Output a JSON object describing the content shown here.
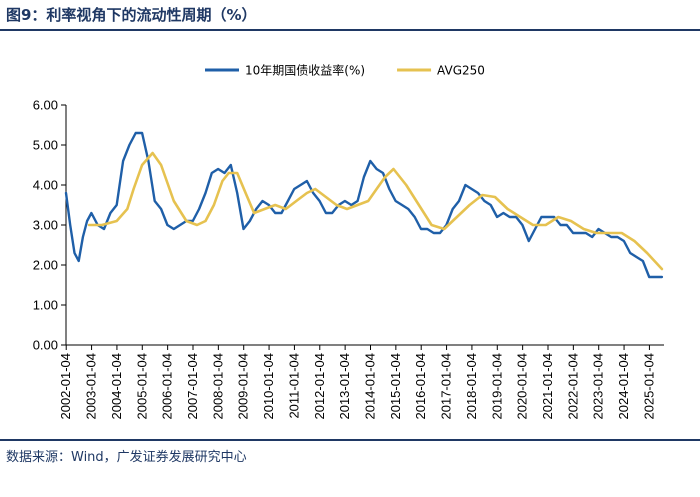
{
  "figure": {
    "title": "图9：利率视角下的流动性周期（%）",
    "source": "数据来源：Wind，广发证券发展研究中心"
  },
  "colors": {
    "series_1": "#1f5fa8",
    "series_2": "#e6c250",
    "axis": "#000000",
    "rule": "#1f3864"
  },
  "chart_data": {
    "type": "line",
    "title": "",
    "xlabel": "",
    "ylabel": "",
    "ylim": [
      0,
      6
    ],
    "y_ticks": [
      "0.00",
      "1.00",
      "2.00",
      "3.00",
      "4.00",
      "5.00",
      "6.00"
    ],
    "x_ticks": [
      "2002-01-04",
      "2003-01-04",
      "2004-01-04",
      "2005-01-04",
      "2006-01-04",
      "2007-01-04",
      "2008-01-04",
      "2009-01-04",
      "2010-01-04",
      "2011-01-04",
      "2012-01-04",
      "2013-01-04",
      "2014-01-04",
      "2015-01-04",
      "2016-01-04",
      "2017-01-04",
      "2018-01-04",
      "2019-01-04",
      "2020-01-04",
      "2021-01-04",
      "2022-01-04",
      "2023-01-04",
      "2024-01-04",
      "2025-01-04"
    ],
    "grid": false,
    "legend_position": "top",
    "series": [
      {
        "name": "10年期国债收益率(%)",
        "color": "#1f5fa8",
        "x": [
          "2002-01",
          "2002-03",
          "2002-05",
          "2002-07",
          "2002-09",
          "2002-11",
          "2003-01",
          "2003-04",
          "2003-07",
          "2003-10",
          "2004-01",
          "2004-04",
          "2004-07",
          "2004-10",
          "2005-01",
          "2005-04",
          "2005-07",
          "2005-10",
          "2006-01",
          "2006-04",
          "2006-07",
          "2006-10",
          "2007-01",
          "2007-04",
          "2007-07",
          "2007-10",
          "2008-01",
          "2008-04",
          "2008-07",
          "2008-10",
          "2009-01",
          "2009-04",
          "2009-07",
          "2009-10",
          "2010-01",
          "2010-04",
          "2010-07",
          "2010-10",
          "2011-01",
          "2011-04",
          "2011-07",
          "2011-10",
          "2012-01",
          "2012-04",
          "2012-07",
          "2012-10",
          "2013-01",
          "2013-04",
          "2013-07",
          "2013-10",
          "2014-01",
          "2014-04",
          "2014-07",
          "2014-10",
          "2015-01",
          "2015-04",
          "2015-07",
          "2015-10",
          "2016-01",
          "2016-04",
          "2016-07",
          "2016-10",
          "2017-01",
          "2017-04",
          "2017-07",
          "2017-10",
          "2018-01",
          "2018-04",
          "2018-07",
          "2018-10",
          "2019-01",
          "2019-04",
          "2019-07",
          "2019-10",
          "2020-01",
          "2020-04",
          "2020-07",
          "2020-10",
          "2021-01",
          "2021-04",
          "2021-07",
          "2021-10",
          "2022-01",
          "2022-04",
          "2022-07",
          "2022-10",
          "2023-01",
          "2023-04",
          "2023-07",
          "2023-10",
          "2024-01",
          "2024-04",
          "2024-07",
          "2024-10",
          "2025-01",
          "2025-04",
          "2025-07"
        ],
        "values": [
          3.8,
          3.0,
          2.3,
          2.1,
          2.7,
          3.1,
          3.3,
          3.0,
          2.9,
          3.3,
          3.5,
          4.6,
          5.0,
          5.3,
          5.3,
          4.6,
          3.6,
          3.4,
          3.0,
          2.9,
          3.0,
          3.1,
          3.1,
          3.4,
          3.8,
          4.3,
          4.4,
          4.3,
          4.5,
          3.8,
          2.9,
          3.1,
          3.4,
          3.6,
          3.5,
          3.3,
          3.3,
          3.6,
          3.9,
          4.0,
          4.1,
          3.8,
          3.6,
          3.3,
          3.3,
          3.5,
          3.6,
          3.5,
          3.6,
          4.2,
          4.6,
          4.4,
          4.3,
          3.9,
          3.6,
          3.5,
          3.4,
          3.2,
          2.9,
          2.9,
          2.8,
          2.8,
          3.0,
          3.4,
          3.6,
          4.0,
          3.9,
          3.8,
          3.6,
          3.5,
          3.2,
          3.3,
          3.2,
          3.2,
          3.0,
          2.6,
          2.9,
          3.2,
          3.2,
          3.2,
          3.0,
          3.0,
          2.8,
          2.8,
          2.8,
          2.7,
          2.9,
          2.8,
          2.7,
          2.7,
          2.6,
          2.3,
          2.2,
          2.1,
          1.7,
          1.7,
          1.7
        ]
      },
      {
        "name": "AVG250",
        "color": "#e6c250",
        "x": [
          "2002-12",
          "2003-06",
          "2004-01",
          "2004-06",
          "2004-09",
          "2005-01",
          "2005-06",
          "2005-10",
          "2006-04",
          "2006-10",
          "2007-03",
          "2007-07",
          "2007-11",
          "2008-03",
          "2008-06",
          "2008-10",
          "2009-02",
          "2009-06",
          "2009-11",
          "2010-04",
          "2010-09",
          "2011-02",
          "2011-07",
          "2011-11",
          "2012-04",
          "2012-09",
          "2013-02",
          "2013-07",
          "2013-12",
          "2014-04",
          "2014-08",
          "2014-12",
          "2015-06",
          "2015-12",
          "2016-06",
          "2016-12",
          "2017-06",
          "2017-12",
          "2018-06",
          "2018-12",
          "2019-06",
          "2019-12",
          "2020-06",
          "2020-12",
          "2021-06",
          "2021-12",
          "2022-06",
          "2022-12",
          "2023-06",
          "2023-12",
          "2024-06",
          "2024-12",
          "2025-07"
        ],
        "values": [
          3.0,
          3.0,
          3.1,
          3.4,
          3.9,
          4.5,
          4.8,
          4.5,
          3.6,
          3.1,
          3.0,
          3.1,
          3.5,
          4.1,
          4.3,
          4.3,
          3.8,
          3.3,
          3.4,
          3.5,
          3.4,
          3.6,
          3.8,
          3.9,
          3.7,
          3.5,
          3.4,
          3.5,
          3.6,
          3.9,
          4.2,
          4.4,
          4.0,
          3.5,
          3.0,
          2.9,
          3.2,
          3.5,
          3.75,
          3.7,
          3.4,
          3.2,
          3.0,
          3.0,
          3.2,
          3.1,
          2.9,
          2.8,
          2.8,
          2.8,
          2.6,
          2.3,
          1.9
        ]
      }
    ]
  }
}
